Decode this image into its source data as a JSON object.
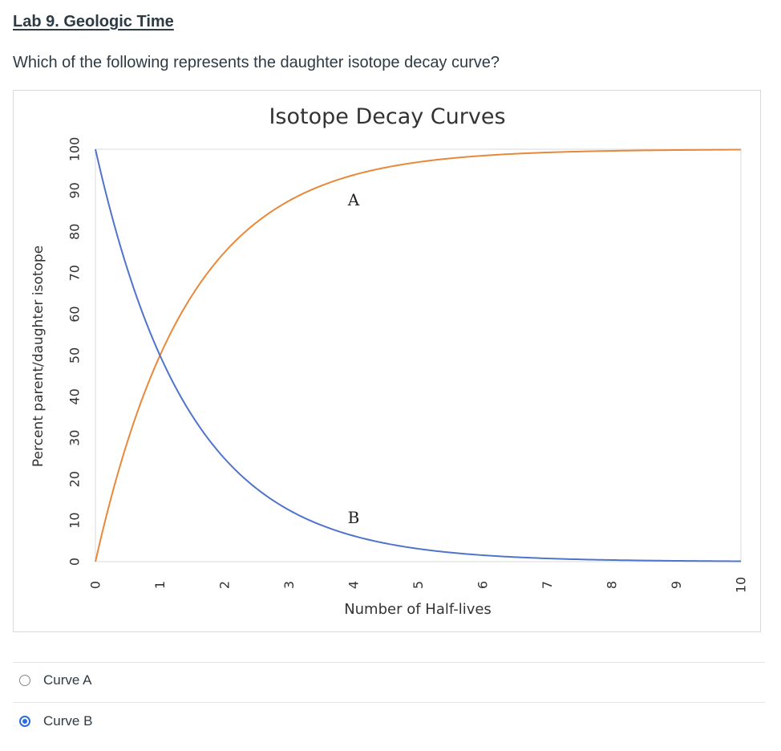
{
  "header": {
    "title": "Lab 9. Geologic Time",
    "question": "Which of the following represents the daughter isotope decay curve?"
  },
  "chart_data": {
    "type": "line",
    "title": "Isotope Decay Curves",
    "xlabel": "Number of Half-lives",
    "ylabel": "Percent parent/daughter isotope",
    "xlim": [
      0,
      10
    ],
    "ylim": [
      0,
      100
    ],
    "x_ticks": [
      "0",
      "1",
      "2",
      "3",
      "4",
      "5",
      "6",
      "7",
      "8",
      "9",
      "10"
    ],
    "y_ticks": [
      "0",
      "10",
      "20",
      "30",
      "40",
      "50",
      "60",
      "70",
      "80",
      "90",
      "100"
    ],
    "grid": false,
    "x": [
      0,
      1,
      2,
      3,
      4,
      5,
      6,
      7,
      8,
      9,
      10
    ],
    "series": [
      {
        "name": "A",
        "color": "#e8883a",
        "values": [
          0,
          50,
          75,
          87.5,
          93.75,
          96.88,
          98.44,
          99.22,
          99.61,
          99.8,
          99.9
        ]
      },
      {
        "name": "B",
        "color": "#4f74c9",
        "values": [
          100,
          50,
          25,
          12.5,
          6.25,
          3.13,
          1.56,
          0.78,
          0.39,
          0.2,
          0.1
        ]
      }
    ]
  },
  "answers": {
    "options": [
      {
        "label": "Curve A",
        "selected": false
      },
      {
        "label": "Curve B",
        "selected": true
      }
    ],
    "accent_color": "#2b6cde"
  }
}
